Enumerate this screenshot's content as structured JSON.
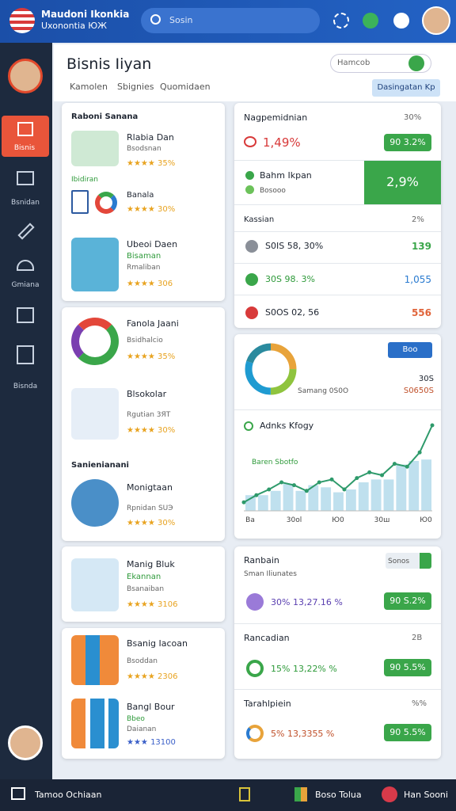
{
  "header": {
    "brand_line1": "Maudoni Ikonkia",
    "brand_line2": "Uxonontia ЮЖ",
    "search": "Sosin"
  },
  "sidebar": {
    "items": [
      "Bisnis",
      "Bsnidan",
      "Gmiana",
      "Bisnda"
    ]
  },
  "page": {
    "title": "Bisnis Iiyan",
    "tabs": [
      "Kamolen",
      "Sbignies",
      "Quomidaen"
    ],
    "search": "Hamcob",
    "button": "Dasingatan Kp"
  },
  "left": {
    "card1": {
      "title": "Raboni Sanana",
      "section_label": "Ibidiran",
      "items": [
        {
          "name": "Rlabia Dan",
          "sub": "Bsodsnan",
          "rating": "★★★★ 35%"
        },
        {
          "name": "Banala",
          "rating": "★★★★ 30%"
        },
        {
          "name": "Ubeoi Daen",
          "sub": "Bisaman",
          "sub2": "Rmaliban",
          "rating": "★★★★ 306"
        }
      ]
    },
    "card2": {
      "items": [
        {
          "name": "Fanola Jaani",
          "sub": "Bsidhalcio",
          "rating": "★★★★ 35%"
        },
        {
          "name": "Blsokolar",
          "sub": "Rgutian 3ЯТ",
          "rating": "★★★★ 30%"
        }
      ],
      "section": "Sanienianani",
      "section_item": {
        "name": "Monigtaan",
        "sub": "Rpnidan SUЭ",
        "rating": "★★★★ 30%"
      }
    },
    "card3": {
      "name": "Manig Bluk",
      "sub": "Ekannan",
      "sub2": "Bsanaiban",
      "rating": "★★★★ 3106"
    },
    "card4": {
      "items": [
        {
          "name": "Bsanig Iacoan",
          "sub": "Bsoddan",
          "rating": "★★★★ 2306"
        },
        {
          "name": "Bangl Bour",
          "sub": "Bbeo",
          "sub2": "Daianan",
          "rating": "★★★ 13100"
        }
      ]
    }
  },
  "right": {
    "card1": {
      "title": "Nagpemidnian",
      "pct": "30%",
      "value": "1,49%",
      "pill": "90 3.2%",
      "highlight": {
        "name": "Bahm Ikpan",
        "sub": "Bosooo",
        "value": "2,9%"
      },
      "list_title": "Kassian",
      "list_pct": "2%",
      "rows": [
        {
          "text": "S0IS 58, 30%",
          "value": "139"
        },
        {
          "text": "30S 98. 3%",
          "value": "1,055"
        },
        {
          "text": "S0OS 02, 56",
          "value": "556"
        }
      ]
    },
    "card2": {
      "button": "Boo",
      "stat1": "30S",
      "label": "Samang 0S0O",
      "stat2": "S0650S",
      "donut": {
        "type": "pie",
        "values": [
          25,
          25,
          30,
          20
        ],
        "colors": [
          "#e8a33a",
          "#8fc43e",
          "#1f9bd1",
          "#2a8a9e"
        ]
      },
      "chart": {
        "type": "bar",
        "title": "Adnks Kfogy",
        "annotation": "Baren Sbotfo",
        "x_labels": [
          "Ba",
          "30ol",
          "Ю0",
          "30ш",
          "Ю0"
        ],
        "bars": [
          22,
          22,
          28,
          38,
          28,
          36,
          33,
          26,
          30,
          40,
          44,
          44,
          65,
          70,
          72
        ],
        "line": [
          12,
          22,
          30,
          40,
          36,
          28,
          40,
          44,
          30,
          46,
          54,
          50,
          66,
          62,
          82,
          120
        ],
        "ylim": [
          0,
          120
        ],
        "bar_color": "#bfe0ee",
        "line_color": "#2e9a6b"
      }
    },
    "card3": {
      "title": "Ranbain",
      "sub": "Sman Iliunates",
      "button": "Sonos",
      "row1": {
        "text": "30% 13,27.16 %",
        "pill": "90 S.2%"
      },
      "title2": "Rancadian",
      "pct2": "2B",
      "row2": {
        "text": "15% 13,22% %",
        "pill": "90 5.5%"
      },
      "title3": "Tarahlpiein",
      "pct3": "%%",
      "row3": {
        "text": "5% 13,3355 %",
        "pill": "90 5.5%"
      }
    }
  },
  "footer": {
    "left": "Tamoo Ochiaan",
    "middle": "Boso Tolua",
    "right": "Han Sooni"
  }
}
